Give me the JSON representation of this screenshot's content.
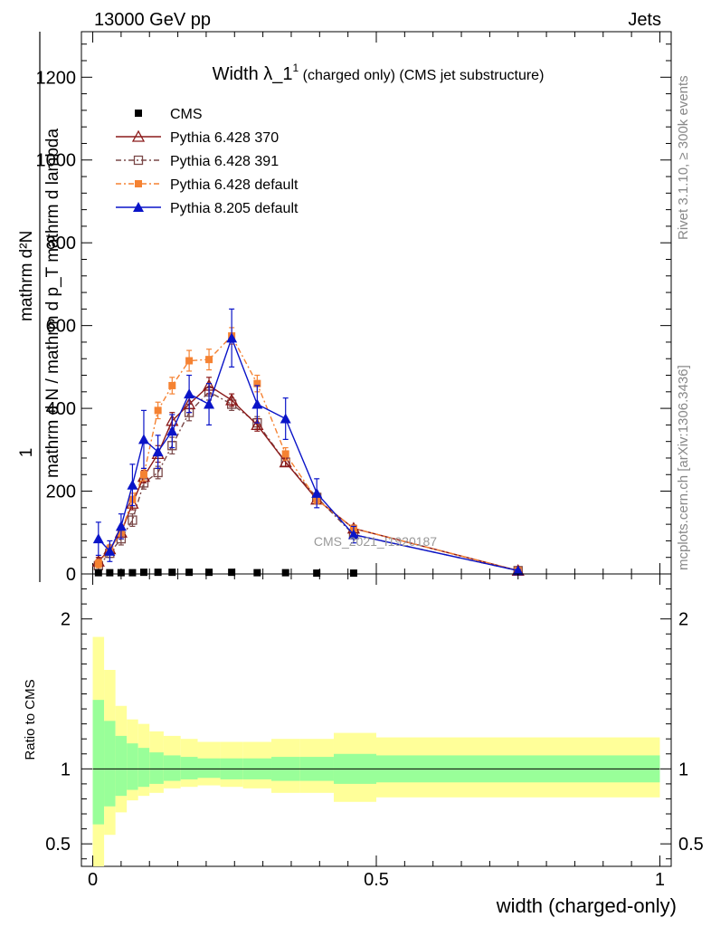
{
  "header": {
    "left": "13000 GeV pp",
    "right": "Jets"
  },
  "side_labels": {
    "rivet": "Rivet 3.1.10, ≥ 300k events",
    "mcplots": "mcplots.cern.ch [arXiv:1306.3436]"
  },
  "watermark": "CMS_2021_I1920187",
  "colors": {
    "cms": "#000000",
    "p370": "#8B1A1A",
    "p391": "#7A4848",
    "p6def": "#F58232",
    "p8": "#0A14C8",
    "band_inner": "#99FF99",
    "band_outer": "#FFFF99"
  },
  "chart_data": [
    {
      "type": "line",
      "title_main": "Width λ_1",
      "title_sup": "1",
      "title_rest": " (charged only) (CMS jet substructure)",
      "ylabel_numerator": "1",
      "ylabel_denominator": "mathrm d N / mathrm d p_T mathrm d lambda",
      "ylabel_numerator_top": "mathrm d²N",
      "ylim": [
        0,
        1310
      ],
      "xlim": [
        -0.02,
        1.02
      ],
      "yticks": [
        0,
        200,
        400,
        600,
        800,
        1000,
        1200
      ],
      "ytick_labels": [
        "0",
        "200",
        "400",
        "600",
        "800",
        "1000",
        "1200"
      ],
      "legend_position": "top-left",
      "series": [
        {
          "name": "CMS",
          "key": "cms",
          "marker": "square-filled",
          "x": [
            0.01,
            0.03,
            0.05,
            0.07,
            0.09,
            0.115,
            0.14,
            0.17,
            0.205,
            0.245,
            0.29,
            0.34,
            0.395,
            0.46
          ],
          "y": [
            3,
            3,
            3,
            3,
            4,
            4,
            4,
            4,
            4,
            4,
            3,
            3,
            2,
            2
          ],
          "err": [
            0,
            0,
            0,
            0,
            0,
            0,
            0,
            0,
            0,
            0,
            0,
            0,
            0,
            0
          ]
        },
        {
          "name": "Pythia 6.428 370",
          "key": "p370",
          "marker": "triangle-open",
          "x": [
            0.01,
            0.03,
            0.05,
            0.07,
            0.09,
            0.115,
            0.14,
            0.17,
            0.205,
            0.245,
            0.29,
            0.34,
            0.395,
            0.46,
            0.75
          ],
          "y": [
            30,
            60,
            100,
            170,
            235,
            290,
            370,
            410,
            455,
            420,
            360,
            270,
            180,
            110,
            8
          ],
          "err": [
            10,
            10,
            15,
            15,
            15,
            20,
            20,
            20,
            20,
            15,
            15,
            10,
            10,
            8,
            2
          ]
        },
        {
          "name": "Pythia 6.428 391",
          "key": "p391",
          "marker": "square-open",
          "x": [
            0.01,
            0.03,
            0.05,
            0.07,
            0.09,
            0.115,
            0.14,
            0.17,
            0.205,
            0.245,
            0.29,
            0.34,
            0.395,
            0.46,
            0.75
          ],
          "y": [
            20,
            50,
            85,
            130,
            220,
            245,
            310,
            390,
            440,
            410,
            365,
            270,
            185,
            95,
            8
          ],
          "err": [
            10,
            10,
            15,
            15,
            15,
            15,
            20,
            20,
            20,
            15,
            15,
            10,
            10,
            8,
            2
          ]
        },
        {
          "name": "Pythia 6.428 default",
          "key": "p6def",
          "marker": "square-filled-small",
          "x": [
            0.01,
            0.03,
            0.05,
            0.07,
            0.09,
            0.115,
            0.14,
            0.17,
            0.205,
            0.245,
            0.29,
            0.34,
            0.395,
            0.46,
            0.75
          ],
          "y": [
            25,
            60,
            100,
            180,
            240,
            395,
            455,
            515,
            518,
            575,
            460,
            290,
            180,
            110,
            8
          ],
          "err": [
            10,
            10,
            15,
            15,
            15,
            20,
            20,
            25,
            25,
            20,
            20,
            15,
            10,
            8,
            2
          ]
        },
        {
          "name": "Pythia 8.205 default",
          "key": "p8",
          "marker": "triangle-filled",
          "x": [
            0.01,
            0.03,
            0.05,
            0.07,
            0.09,
            0.115,
            0.14,
            0.17,
            0.205,
            0.245,
            0.29,
            0.34,
            0.395,
            0.46,
            0.75
          ],
          "y": [
            85,
            55,
            115,
            215,
            325,
            295,
            345,
            435,
            410,
            570,
            410,
            375,
            195,
            95,
            8
          ],
          "err": [
            40,
            25,
            30,
            50,
            70,
            40,
            40,
            45,
            50,
            70,
            45,
            50,
            35,
            20,
            3
          ]
        }
      ]
    },
    {
      "type": "area",
      "ylabel": "Ratio to CMS",
      "xlabel": "width (charged-only)",
      "ylim": [
        0.35,
        2.3
      ],
      "xlim": [
        -0.02,
        1.02
      ],
      "yticks": [
        0.5,
        1,
        2
      ],
      "ytick_labels": [
        "0.5",
        "1",
        "2"
      ],
      "xticks": [
        0,
        0.5,
        1
      ],
      "xtick_labels": [
        "0",
        "0.5",
        "1"
      ],
      "reference_line": 1,
      "bins": [
        0,
        0.02,
        0.04,
        0.06,
        0.08,
        0.1,
        0.125,
        0.155,
        0.185,
        0.225,
        0.265,
        0.315,
        0.365,
        0.425,
        0.5,
        1.0
      ],
      "inner_low": [
        0.63,
        0.75,
        0.82,
        0.86,
        0.88,
        0.9,
        0.92,
        0.93,
        0.94,
        0.93,
        0.93,
        0.92,
        0.92,
        0.9,
        0.91
      ],
      "inner_high": [
        1.46,
        1.32,
        1.22,
        1.17,
        1.14,
        1.11,
        1.09,
        1.08,
        1.07,
        1.07,
        1.07,
        1.08,
        1.08,
        1.1,
        1.09
      ],
      "outer_low": [
        0.33,
        0.56,
        0.71,
        0.79,
        0.82,
        0.84,
        0.87,
        0.88,
        0.89,
        0.88,
        0.87,
        0.84,
        0.84,
        0.78,
        0.81
      ],
      "outer_high": [
        1.88,
        1.66,
        1.42,
        1.33,
        1.3,
        1.25,
        1.22,
        1.2,
        1.18,
        1.18,
        1.18,
        1.2,
        1.2,
        1.24,
        1.21
      ]
    }
  ]
}
